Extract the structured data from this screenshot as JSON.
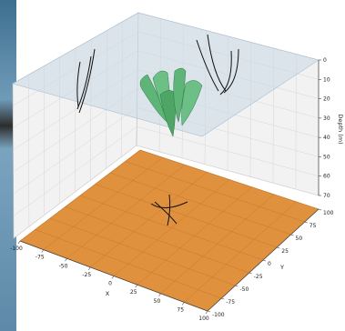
{
  "chart_data": {
    "type": "scatter",
    "title": "",
    "xlabel": "X",
    "ylabel": "Y",
    "zlabel": "Depth (m)",
    "xlim": [
      -100,
      100
    ],
    "ylim": [
      -100,
      100
    ],
    "zlim": [
      70,
      0
    ],
    "x_ticks": [
      -100,
      -75,
      -50,
      -25,
      0,
      25,
      50,
      75,
      100
    ],
    "y_ticks": [
      -100,
      -75,
      -50,
      -25,
      0,
      25,
      50,
      75,
      100
    ],
    "z_ticks": [
      0,
      10,
      20,
      30,
      40,
      50,
      60,
      70
    ],
    "grid": true,
    "colors": {
      "ground_plane": "#e0913e",
      "surface_plane": "#c8d7e6",
      "green_bodies": "#5fb477",
      "lines": "#111111"
    }
  }
}
